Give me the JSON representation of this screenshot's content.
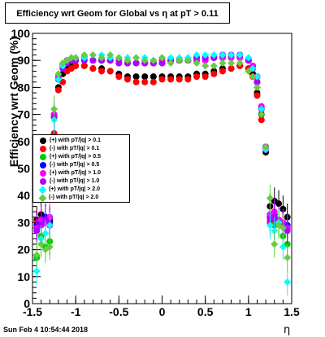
{
  "title": "Efficiency wrt Geom for Global vs   η at pT > 0.11",
  "timestamp": "Sun Feb  4 10:54:44 2018",
  "chart_data": {
    "type": "scatter",
    "xlabel": "η",
    "ylabel": "Efficiency wrt Geom (%)",
    "xlim": [
      -1.5,
      1.5
    ],
    "ylim": [
      0,
      100
    ],
    "x_ticks": [
      "-1.5",
      "-1",
      "-0.5",
      "0",
      "0.5",
      "1",
      "1.5"
    ],
    "y_ticks": [
      "0",
      "10",
      "20",
      "30",
      "40",
      "50",
      "60",
      "70",
      "80",
      "90",
      "100"
    ],
    "legend_position": "left-middle",
    "series": [
      {
        "name": "(+) with pT/|q| > 0.1",
        "color": "#000000",
        "marker": "circle",
        "x": [
          -1.45,
          -1.4,
          -1.35,
          -1.3,
          -1.25,
          -1.2,
          -1.15,
          -1.1,
          -1.05,
          -1.0,
          -0.9,
          -0.8,
          -0.7,
          -0.6,
          -0.5,
          -0.4,
          -0.3,
          -0.2,
          -0.1,
          0.0,
          0.1,
          0.2,
          0.3,
          0.4,
          0.5,
          0.6,
          0.7,
          0.8,
          0.9,
          1.0,
          1.05,
          1.1,
          1.15,
          1.2,
          1.25,
          1.3,
          1.35,
          1.4,
          1.45
        ],
        "y": [
          31,
          33,
          32,
          31,
          62,
          80,
          85,
          87,
          88,
          88,
          88,
          87,
          87,
          86,
          85,
          84,
          84,
          84,
          84,
          84,
          84,
          84,
          84,
          85,
          85,
          86,
          87,
          87,
          88,
          87,
          85,
          78,
          70,
          56,
          36,
          38,
          37,
          35,
          32
        ]
      },
      {
        "name": "(-) with pT/|q| > 0.1",
        "color": "#ff0000",
        "marker": "circle",
        "x": [
          -1.45,
          -1.4,
          -1.35,
          -1.3,
          -1.25,
          -1.2,
          -1.15,
          -1.1,
          -1.05,
          -1.0,
          -0.9,
          -0.8,
          -0.7,
          -0.6,
          -0.5,
          -0.4,
          -0.3,
          -0.2,
          -0.1,
          0.0,
          0.1,
          0.2,
          0.3,
          0.4,
          0.5,
          0.6,
          0.7,
          0.8,
          0.9,
          1.0,
          1.05,
          1.1,
          1.15,
          1.2,
          1.25,
          1.3,
          1.35,
          1.4,
          1.45
        ],
        "y": [
          30,
          31,
          30,
          29,
          63,
          79,
          82,
          86,
          87,
          88,
          88,
          87,
          86,
          86,
          84,
          83,
          82,
          82,
          82,
          83,
          83,
          83,
          83,
          84,
          84,
          85,
          86,
          87,
          88,
          87,
          84,
          77,
          68,
          57,
          30,
          31,
          30,
          29,
          28
        ]
      },
      {
        "name": "(+) with pT/|q| > 0.5",
        "color": "#00cc00",
        "marker": "circle",
        "x": [
          -1.45,
          -1.4,
          -1.35,
          -1.3,
          -1.25,
          -1.2,
          -1.15,
          -1.1,
          -1.05,
          -1.0,
          -0.9,
          -0.8,
          -0.7,
          -0.6,
          -0.5,
          -0.4,
          -0.3,
          -0.2,
          -0.1,
          0.0,
          0.1,
          0.2,
          0.3,
          0.4,
          0.5,
          0.6,
          0.7,
          0.8,
          0.9,
          1.0,
          1.05,
          1.1,
          1.15,
          1.2,
          1.25,
          1.3,
          1.35,
          1.4,
          1.45
        ],
        "y": [
          17,
          25,
          21,
          23,
          70,
          84,
          88,
          90,
          90,
          90,
          91,
          90,
          90,
          90,
          90,
          89,
          89,
          89,
          89,
          90,
          90,
          90,
          90,
          90,
          90,
          91,
          91,
          91,
          91,
          90,
          88,
          84,
          72,
          58,
          33,
          29,
          30,
          25,
          22
        ]
      },
      {
        "name": "(-) with pT/|q| > 0.5",
        "color": "#0000ff",
        "marker": "circle",
        "x": [
          -1.45,
          -1.4,
          -1.35,
          -1.3,
          -1.25,
          -1.2,
          -1.15,
          -1.1,
          -1.05,
          -1.0,
          -0.9,
          -0.8,
          -0.7,
          -0.6,
          -0.5,
          -0.4,
          -0.3,
          -0.2,
          -0.1,
          0.0,
          0.1,
          0.2,
          0.3,
          0.4,
          0.5,
          0.6,
          0.7,
          0.8,
          0.9,
          1.0,
          1.05,
          1.1,
          1.15,
          1.2,
          1.25,
          1.3,
          1.35,
          1.4,
          1.45
        ],
        "y": [
          29,
          30,
          32,
          30,
          69,
          83,
          88,
          89,
          90,
          90,
          90,
          90,
          90,
          90,
          89,
          89,
          89,
          89,
          89,
          89,
          90,
          90,
          90,
          91,
          91,
          91,
          92,
          92,
          92,
          90,
          87,
          82,
          72,
          58,
          32,
          33,
          31,
          30,
          29
        ]
      },
      {
        "name": "(+) with pT/|q| > 1.0",
        "color": "#ff00ff",
        "marker": "circle",
        "x": [
          -1.45,
          -1.4,
          -1.35,
          -1.3,
          -1.25,
          -1.2,
          -1.15,
          -1.1,
          -1.05,
          -1.0,
          -0.9,
          -0.8,
          -0.7,
          -0.6,
          -0.5,
          -0.4,
          -0.3,
          -0.2,
          -0.1,
          0.0,
          0.1,
          0.2,
          0.3,
          0.4,
          0.5,
          0.6,
          0.7,
          0.8,
          0.9,
          1.0,
          1.05,
          1.1,
          1.15,
          1.2,
          1.25,
          1.3,
          1.35,
          1.4,
          1.45
        ],
        "y": [
          28,
          31,
          30,
          32,
          70,
          84,
          88,
          90,
          90,
          90,
          91,
          90,
          90,
          90,
          90,
          89,
          89,
          89,
          89,
          90,
          90,
          90,
          90,
          90,
          90,
          91,
          91,
          91,
          91,
          90,
          88,
          84,
          73,
          58,
          33,
          34,
          31,
          30,
          28
        ]
      },
      {
        "name": "(-) with pT/|q| > 1.0",
        "color": "#b000ff",
        "marker": "circle",
        "x": [
          -1.45,
          -1.4,
          -1.35,
          -1.3,
          -1.25,
          -1.2,
          -1.15,
          -1.1,
          -1.05,
          -1.0,
          -0.9,
          -0.8,
          -0.7,
          -0.6,
          -0.5,
          -0.4,
          -0.3,
          -0.2,
          -0.1,
          0.0,
          0.1,
          0.2,
          0.3,
          0.4,
          0.5,
          0.6,
          0.7,
          0.8,
          0.9,
          1.0,
          1.05,
          1.1,
          1.15,
          1.2,
          1.25,
          1.3,
          1.35,
          1.4,
          1.45
        ],
        "y": [
          27,
          29,
          31,
          29,
          69,
          83,
          87,
          89,
          90,
          90,
          90,
          90,
          90,
          90,
          89,
          89,
          89,
          89,
          89,
          89,
          90,
          90,
          90,
          91,
          91,
          91,
          92,
          92,
          92,
          90,
          87,
          82,
          72,
          57,
          31,
          32,
          30,
          29,
          27
        ]
      },
      {
        "name": "(+) with pT/|q| > 2.0",
        "color": "#00ffff",
        "marker": "diamond",
        "x": [
          -1.45,
          -1.4,
          -1.35,
          -1.3,
          -1.25,
          -1.2,
          -1.15,
          -1.1,
          -1.05,
          -1.0,
          -0.9,
          -0.8,
          -0.7,
          -0.6,
          -0.5,
          -0.4,
          -0.3,
          -0.2,
          -0.1,
          0.0,
          0.1,
          0.2,
          0.3,
          0.4,
          0.5,
          0.6,
          0.7,
          0.8,
          0.9,
          1.0,
          1.05,
          1.1,
          1.15,
          1.2,
          1.25,
          1.3,
          1.35,
          1.4,
          1.45
        ],
        "y": [
          12,
          24,
          26,
          29,
          68,
          83,
          88,
          90,
          91,
          91,
          91,
          92,
          92,
          91,
          91,
          91,
          91,
          91,
          90,
          91,
          91,
          91,
          91,
          92,
          92,
          92,
          92,
          92,
          92,
          91,
          87,
          84,
          72,
          57,
          29,
          27,
          30,
          21,
          8
        ]
      },
      {
        "name": "(-) with pT/|q| > 2.0",
        "color": "#66cc44",
        "marker": "diamond",
        "x": [
          -1.45,
          -1.4,
          -1.35,
          -1.3,
          -1.25,
          -1.2,
          -1.15,
          -1.1,
          -1.05,
          -1.0,
          -0.9,
          -0.8,
          -0.7,
          -0.6,
          -0.5,
          -0.4,
          -0.3,
          -0.2,
          -0.1,
          0.0,
          0.1,
          0.2,
          0.3,
          0.4,
          0.5,
          0.6,
          0.7,
          0.8,
          0.9,
          1.0,
          1.05,
          1.1,
          1.15,
          1.2,
          1.25,
          1.3,
          1.35,
          1.4,
          1.45
        ],
        "y": [
          18,
          22,
          20,
          21,
          72,
          85,
          89,
          90,
          91,
          91,
          92,
          92,
          91,
          92,
          91,
          90,
          91,
          90,
          90,
          91,
          89,
          90,
          90,
          89,
          88,
          88,
          89,
          89,
          89,
          86,
          84,
          80,
          70,
          58,
          39,
          22,
          29,
          28,
          17
        ]
      }
    ]
  }
}
